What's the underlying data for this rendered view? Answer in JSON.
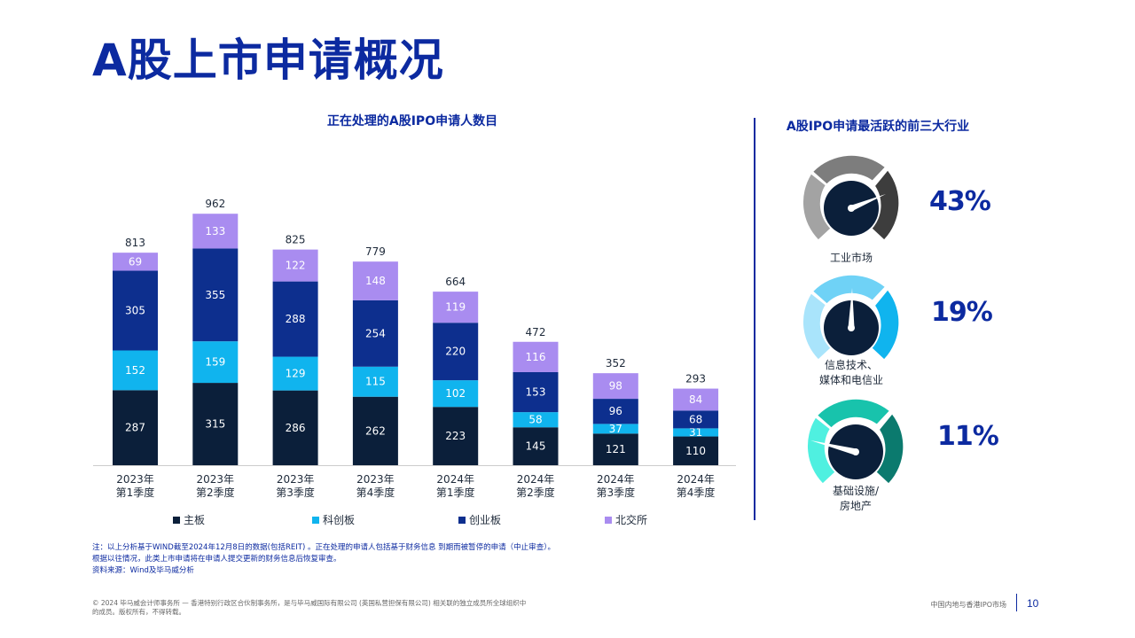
{
  "page": {
    "title": "A股上市申请概况",
    "number": "10",
    "footer_title": "中国内地与香港IPO市场",
    "copyright": "© 2024 毕马威会计师事务所 — 香港特别行政区合伙制事务所，是与毕马威国际有限公司 (英国私营担保有限公司) 相关联的独立成员所全球组织中的成员。版权所有，不得转载。"
  },
  "notes": {
    "line1": "注：以上分析基于WIND截至2024年12月8日的数据(包括REIT) 。正在处理的申请人包括基于财务信息 到期而被暂停的申请（中止审查）。",
    "line2": "根据以往情况，此类上市申请将在申请人提交更新的财务信息后恢复审查。",
    "line3": "资料来源：Wind及毕马威分析"
  },
  "chart_data": {
    "type": "bar",
    "stacked": true,
    "title": "正在处理的A股IPO申请人数目",
    "categories": [
      "2023年第1季度",
      "2023年第2季度",
      "2023年第3季度",
      "2023年第4季度",
      "2024年第1季度",
      "2024年第2季度",
      "2024年第3季度",
      "2024年第4季度"
    ],
    "category_lines": [
      [
        "2023年",
        "第1季度"
      ],
      [
        "2023年",
        "第2季度"
      ],
      [
        "2023年",
        "第3季度"
      ],
      [
        "2023年",
        "第4季度"
      ],
      [
        "2024年",
        "第1季度"
      ],
      [
        "2024年",
        "第2季度"
      ],
      [
        "2024年",
        "第3季度"
      ],
      [
        "2024年",
        "第4季度"
      ]
    ],
    "totals": [
      813,
      962,
      825,
      779,
      664,
      472,
      352,
      293
    ],
    "series": [
      {
        "name": "主板",
        "color": "#0b1f3a",
        "values": [
          287,
          315,
          286,
          262,
          223,
          145,
          121,
          110
        ]
      },
      {
        "name": "科创板",
        "color": "#10b4ee",
        "values": [
          152,
          159,
          129,
          115,
          102,
          58,
          37,
          31
        ]
      },
      {
        "name": "创业板",
        "color": "#0d2f8e",
        "values": [
          305,
          355,
          288,
          254,
          220,
          153,
          96,
          68
        ]
      },
      {
        "name": "北交所",
        "color": "#a98cf0",
        "values": [
          69,
          133,
          122,
          148,
          119,
          116,
          98,
          84
        ]
      }
    ],
    "legend_position": "bottom",
    "grid": false
  },
  "industries": {
    "title": "A股IPO申请最活跃的前三大行业",
    "items": [
      {
        "label_line1": "工业市场",
        "label_line2": "",
        "percent": "43%",
        "value": 43
      },
      {
        "label_line1": "信息技术、",
        "label_line2": "媒体和电信业",
        "percent": "19%",
        "value": 19
      },
      {
        "label_line1": "基础设施/",
        "label_line2": "房地产",
        "percent": "11%",
        "value": 11
      }
    ]
  }
}
